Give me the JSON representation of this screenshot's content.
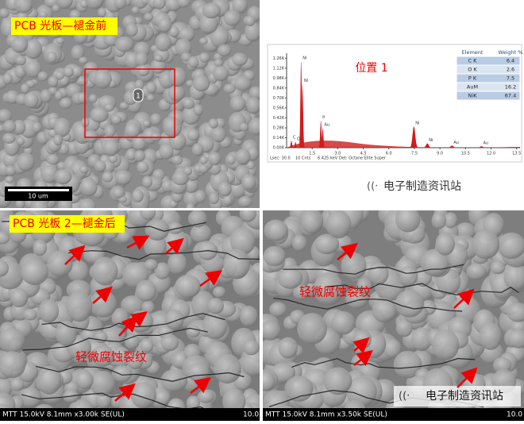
{
  "top_left": {
    "label": "PCB 光板—褪金前",
    "marker": "1",
    "scale_bar": "10 um"
  },
  "eds": {
    "position_label": "位置 1",
    "table": {
      "header": [
        "Element",
        "Weight %"
      ],
      "rows": [
        [
          "C K",
          "6.4"
        ],
        [
          "O K",
          "2.6"
        ],
        [
          "P K",
          "7.5"
        ],
        [
          "AuM",
          "16.2"
        ],
        [
          "NiK",
          "67.4"
        ]
      ]
    },
    "spectrum": {
      "xlim": [
        0,
        13.7
      ],
      "ylim": [
        0,
        1.33
      ],
      "xticks": [
        {
          "value": 1.5,
          "label": "1.5"
        },
        {
          "value": 3,
          "label": "3.0"
        },
        {
          "value": 4.5,
          "label": "4.5"
        },
        {
          "value": 6,
          "label": "6.0"
        },
        {
          "value": 7.5,
          "label": "7.5"
        },
        {
          "value": 9,
          "label": "9.0"
        },
        {
          "value": 10.5,
          "label": "10.5"
        },
        {
          "value": 12,
          "label": "12.0"
        },
        {
          "value": 13.5,
          "label": "13.5"
        }
      ],
      "yticks": [
        {
          "value": 0,
          "label": "0.00K"
        },
        {
          "value": 0.14,
          "label": "0.14K"
        },
        {
          "value": 0.28,
          "label": "0.28K"
        },
        {
          "value": 0.42,
          "label": "0.42K"
        },
        {
          "value": 0.56,
          "label": "0.56K"
        },
        {
          "value": 0.7,
          "label": "0.70K"
        },
        {
          "value": 0.84,
          "label": "0.84K"
        },
        {
          "value": 0.98,
          "label": "0.98K"
        },
        {
          "value": 1.12,
          "label": "1.12K"
        },
        {
          "value": 1.26,
          "label": "1.26K"
        }
      ],
      "peaks": [
        {
          "label": "C",
          "kev": 0.28,
          "counts": 0.1
        },
        {
          "label": "O",
          "kev": 0.52,
          "counts": 0.08
        },
        {
          "label": "Ni",
          "kev": 0.85,
          "counts": 1.22
        },
        {
          "label": "Ni",
          "kev": 0.93,
          "counts": 0.9
        },
        {
          "label": "P",
          "kev": 2.01,
          "counts": 0.38
        },
        {
          "label": "Au",
          "kev": 2.12,
          "counts": 0.28
        },
        {
          "label": "Ni",
          "kev": 7.47,
          "counts": 0.3
        },
        {
          "label": "Ni",
          "kev": 8.26,
          "counts": 0.06
        },
        {
          "label": "Au",
          "kev": 9.71,
          "counts": 0.03
        },
        {
          "label": "Au",
          "kev": 11.44,
          "counts": 0.02
        }
      ],
      "footer": [
        "Lsec: 30.0",
        "10 Cnts",
        "6.425 keV",
        "Det: Octane Elite Super"
      ]
    },
    "watermark": "电子制造资讯站"
  },
  "bottom_left": {
    "label": "PCB 光板 2—褪金后",
    "annotation": "轻微腐蚀裂纹",
    "footer": "MTT 15.0kV 8.1mm x3.00k SE(UL)",
    "scale": "10.0"
  },
  "bottom_right": {
    "annotation": "轻微腐蚀裂纹",
    "footer": "MTT 15.0kV 8.1mm x3.50k SE(UL)",
    "scale": "10.0",
    "watermark": "电子制造资讯站"
  }
}
